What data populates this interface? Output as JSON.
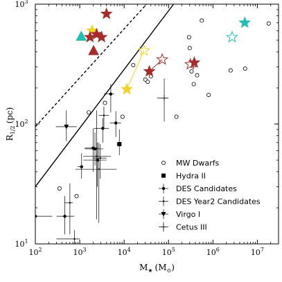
{
  "chart_data": {
    "type": "scatter",
    "xlabel": "M",
    "xlabel_sub": "★",
    "xlabel_unit": "(M",
    "xlabel_unit_sub": "⊙",
    "xlabel_unit_close": ")",
    "ylabel": "R",
    "ylabel_sub": "1/2",
    "ylabel_unit": "(pc)",
    "xscale": "log",
    "yscale": "log",
    "xlim": [
      100,
      30000000
    ],
    "ylim": [
      10,
      1000
    ],
    "grid": false,
    "legend_position": "lower-right",
    "x_ticks": [
      {
        "value": 100,
        "base": "10",
        "exp": "2"
      },
      {
        "value": 1000,
        "base": "10",
        "exp": "3"
      },
      {
        "value": 10000,
        "base": "10",
        "exp": "4"
      },
      {
        "value": 100000,
        "base": "10",
        "exp": "5"
      },
      {
        "value": 1000000,
        "base": "10",
        "exp": "6"
      },
      {
        "value": 10000000,
        "base": "10",
        "exp": "7"
      }
    ],
    "y_ticks": [
      {
        "value": 10,
        "base": "10",
        "exp": "1"
      },
      {
        "value": 100,
        "base": "10",
        "exp": "2"
      },
      {
        "value": 1000,
        "base": "10",
        "exp": "3"
      }
    ],
    "lines": [
      {
        "style": "dashed",
        "points": [
          [
            100,
            95
          ],
          [
            32000,
            1000
          ]
        ]
      },
      {
        "style": "solid",
        "points": [
          [
            100,
            30
          ],
          [
            130000,
            1000
          ]
        ]
      },
      {
        "style": "thin",
        "points": [
          [
            11500,
            195
          ],
          [
            28000,
            410
          ]
        ],
        "color": "#f2d224"
      },
      {
        "style": "thin",
        "points": [
          [
            37000,
            275
          ],
          [
            72000,
            345
          ]
        ],
        "color": "#a62c2c"
      }
    ],
    "series": [
      {
        "name": "MW Dwarfs",
        "marker": "open-circle",
        "points": [
          [
            350,
            29
          ],
          [
            850,
            25
          ],
          [
            1600,
            125
          ],
          [
            3700,
            150
          ],
          [
            9200,
            115
          ],
          [
            16000,
            310
          ],
          [
            30000,
            235
          ],
          [
            34000,
            225
          ],
          [
            40000,
            250
          ],
          [
            150000,
            115
          ],
          [
            290000,
            530
          ],
          [
            300000,
            430
          ],
          [
            330000,
            275
          ],
          [
            370000,
            215
          ],
          [
            390000,
            310
          ],
          [
            440000,
            255
          ],
          [
            560000,
            730
          ],
          [
            800000,
            175
          ],
          [
            2500000,
            280
          ],
          [
            5300000,
            290
          ],
          [
            18000000,
            690
          ]
        ]
      },
      {
        "name": "Hydra II",
        "marker": "filled-square",
        "points": [
          {
            "x": 7800,
            "y": 68,
            "xerr": [
              6800,
              8800
            ],
            "yerr": [
              55,
              90
            ]
          }
        ]
      },
      {
        "name": "DES Candidates",
        "marker": "filled-circle",
        "points": [
          {
            "x": 100,
            "y": 17,
            "xerr": [
              100,
              240
            ],
            "yerr": [
              10,
              26
            ]
          },
          {
            "x": 460,
            "y": 17,
            "xerr": [
              300,
              750
            ],
            "yerr": [
              12,
              25
            ]
          },
          {
            "x": 2000,
            "y": 63,
            "xerr": [
              1300,
              2600
            ],
            "yerr": [
              40,
              92
            ]
          },
          {
            "x": 2500,
            "y": 50,
            "xerr": [
              1200,
              4000
            ],
            "yerr": [
              30,
              70
            ]
          },
          {
            "x": 3300,
            "y": 92,
            "xerr": [
              2100,
              4500
            ],
            "yerr": [
              70,
              112
            ]
          },
          {
            "x": 5000,
            "y": 178,
            "xerr": [
              3500,
              6000
            ],
            "yerr": [
              125,
              215
            ]
          },
          {
            "x": 6500,
            "y": 102,
            "xerr": [
              4800,
              8500
            ],
            "yerr": [
              78,
              128
            ]
          },
          {
            "x": 1100,
            "y": 44,
            "xerr": [
              900,
              1200
            ],
            "yerr": [
              35,
              57
            ]
          },
          {
            "x": 2200,
            "y": 62,
            "xerr": [
              1300,
              3400
            ],
            "yerr": [
              45,
              85
            ]
          }
        ]
      },
      {
        "name": "DES Year2 Candidates",
        "marker": "small-dot",
        "points": [
          {
            "x": 600,
            "y": 22,
            "xerr": [
              460,
              700
            ],
            "yerr": [
              12,
              32
            ]
          },
          {
            "x": 760,
            "y": 11,
            "xerr": [
              300,
              1000
            ],
            "yerr": [
              10,
              13
            ]
          },
          {
            "x": 2400,
            "y": 54,
            "xerr": [
              1200,
              5000
            ],
            "yerr": [
              16,
              130
            ]
          },
          {
            "x": 2700,
            "y": 42,
            "xerr": [
              800,
              6800
            ],
            "yerr": [
              15,
              70
            ]
          },
          {
            "x": 3500,
            "y": 118,
            "xerr": [
              2700,
              4500
            ],
            "yerr": [
              90,
              140
            ]
          },
          {
            "x": 2900,
            "y": 52,
            "xerr": [
              2000,
              4000
            ],
            "yerr": [
              35,
              68
            ]
          }
        ]
      },
      {
        "name": "Virgo I",
        "marker": "filled-triangle-down",
        "points": [
          {
            "x": 500,
            "y": 95,
            "xerr": [
              290,
              850
            ],
            "yerr": [
              72,
              130
            ]
          }
        ]
      },
      {
        "name": "Cetus III",
        "marker": "plus-thin",
        "points": [
          {
            "x": 80000,
            "y": 165,
            "xerr": [
              55000,
              100000
            ],
            "yerr": [
              105,
              240
            ]
          }
        ]
      }
    ],
    "extra_markers": [
      {
        "shape": "star",
        "fill": "#a62c2c",
        "stroke": "#a62c2c",
        "x": 4000,
        "y": 830
      },
      {
        "shape": "star",
        "fill": "#f2d224",
        "stroke": "#f2d224",
        "x": 1900,
        "y": 600
      },
      {
        "shape": "star",
        "fill": "#a62c2c",
        "stroke": "#a62c2c",
        "x": 2400,
        "y": 560
      },
      {
        "shape": "star",
        "fill": "#a62c2c",
        "stroke": "#a62c2c",
        "x": 3100,
        "y": 530
      },
      {
        "shape": "star",
        "fill": "#a62c2c",
        "stroke": "#a62c2c",
        "x": 1700,
        "y": 530
      },
      {
        "shape": "triangle",
        "fill": "#1fbdb5",
        "stroke": "#1fbdb5",
        "x": 1080,
        "y": 540
      },
      {
        "shape": "triangle",
        "fill": "#a62c2c",
        "stroke": "#a62c2c",
        "x": 2050,
        "y": 410
      },
      {
        "shape": "star",
        "fill": "#f2d224",
        "stroke": "#f2d224",
        "x": 11500,
        "y": 195
      },
      {
        "shape": "star",
        "fill": "none",
        "stroke": "#f2d224",
        "x": 28000,
        "y": 410
      },
      {
        "shape": "star",
        "fill": "#a62c2c",
        "stroke": "#a62c2c",
        "x": 37000,
        "y": 275
      },
      {
        "shape": "star",
        "fill": "none",
        "stroke": "#a62c2c",
        "x": 72000,
        "y": 345
      },
      {
        "shape": "star",
        "fill": "#a62c2c",
        "stroke": "#a62c2c",
        "x": 380000,
        "y": 325
      },
      {
        "shape": "star",
        "fill": "none",
        "stroke": "#a62c2c",
        "x": 310000,
        "y": 315
      },
      {
        "shape": "star",
        "fill": "#1fbdb5",
        "stroke": "#1fbdb5",
        "x": 5200000,
        "y": 700
      },
      {
        "shape": "star",
        "fill": "none",
        "stroke": "#1fbdb5",
        "x": 2700000,
        "y": 530
      }
    ]
  }
}
